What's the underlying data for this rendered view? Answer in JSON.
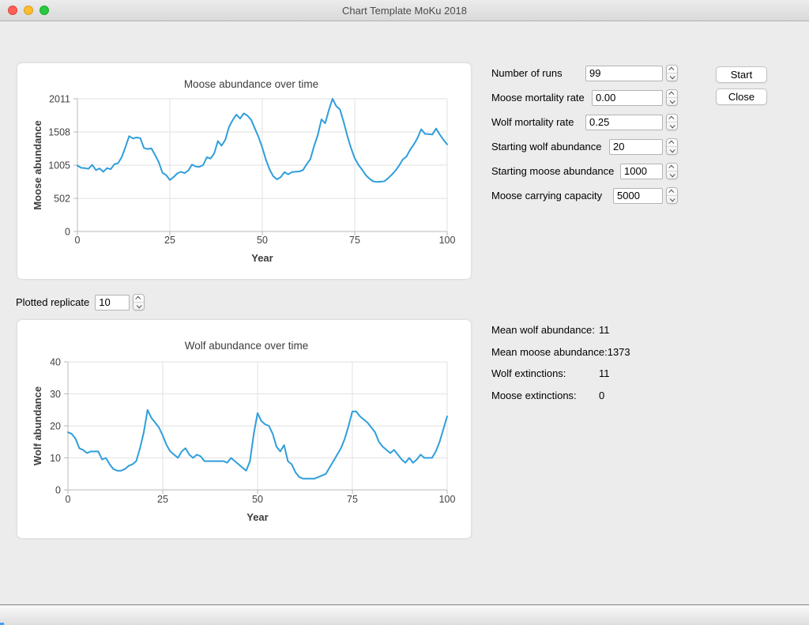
{
  "window": {
    "title": "Chart Template MoKu 2018"
  },
  "traffic_lights": {
    "close_color": "#ff5f57",
    "minimize_color": "#febc2e",
    "zoom_color": "#28c840"
  },
  "form": {
    "fields": [
      {
        "label": "Number of runs",
        "value": "99"
      },
      {
        "label": "Moose mortality rate",
        "value": "0.00"
      },
      {
        "label": "Wolf mortality rate",
        "value": "0.25"
      },
      {
        "label": "Starting wolf abundance",
        "value": "20"
      },
      {
        "label": "Starting moose abundance",
        "value": "1000"
      },
      {
        "label": "Moose carrying capacity",
        "value": "5000"
      }
    ]
  },
  "buttons": {
    "start": "Start",
    "close": "Close"
  },
  "replicate": {
    "label": "Plotted replicate",
    "value": "10"
  },
  "stats": [
    {
      "label": "Mean wolf abundance:",
      "value": "11"
    },
    {
      "label": "Mean moose abundance:",
      "value": "1373"
    },
    {
      "label": "Wolf extinctions:",
      "value": "11"
    },
    {
      "label": "Moose extinctions:",
      "value": "0"
    }
  ],
  "colors": {
    "line": "#2f9edb",
    "grid": "#e2e2e2",
    "axis": "#b9b9b9",
    "tick_text": "#424242",
    "title_text": "#3c3c3c"
  },
  "chart_data": [
    {
      "type": "line",
      "title": "Moose abundance over time",
      "xlabel": "Year",
      "ylabel": "Moose abundance",
      "x_ticks": [
        0,
        25,
        50,
        75,
        100
      ],
      "y_ticks": [
        0,
        502,
        1005,
        1508,
        2011
      ],
      "xlim": [
        0,
        100
      ],
      "ylim": [
        0,
        2011
      ],
      "grid": true,
      "legend": false,
      "x_step": 1,
      "values": [
        1000,
        965,
        960,
        950,
        1010,
        930,
        955,
        905,
        960,
        945,
        1020,
        1035,
        1130,
        1280,
        1445,
        1410,
        1425,
        1415,
        1265,
        1250,
        1260,
        1160,
        1050,
        890,
        855,
        780,
        825,
        880,
        905,
        885,
        925,
        1015,
        985,
        980,
        1005,
        1125,
        1105,
        1185,
        1370,
        1300,
        1390,
        1585,
        1690,
        1770,
        1710,
        1790,
        1755,
        1690,
        1560,
        1430,
        1270,
        1085,
        935,
        835,
        790,
        825,
        900,
        865,
        900,
        905,
        910,
        930,
        1020,
        1095,
        1290,
        1460,
        1700,
        1640,
        1835,
        2011,
        1900,
        1850,
        1660,
        1450,
        1265,
        1110,
        1010,
        935,
        855,
        800,
        760,
        750,
        755,
        760,
        805,
        860,
        920,
        1000,
        1090,
        1135,
        1240,
        1320,
        1420,
        1550,
        1480,
        1475,
        1470,
        1560,
        1470,
        1390,
        1320
      ]
    },
    {
      "type": "line",
      "title": "Wolf abundance over time",
      "xlabel": "Year",
      "ylabel": "Wolf abundance",
      "x_ticks": [
        0,
        25,
        50,
        75,
        100
      ],
      "y_ticks": [
        0,
        10,
        20,
        30,
        40
      ],
      "xlim": [
        0,
        100
      ],
      "ylim": [
        0,
        40
      ],
      "grid": true,
      "legend": false,
      "x_step": 1,
      "values": [
        18,
        17.5,
        16,
        13,
        12.5,
        11.5,
        12,
        12,
        12,
        9.5,
        10,
        8,
        6.5,
        6,
        6,
        6.5,
        7.5,
        8,
        9,
        13,
        18,
        25,
        22.5,
        21,
        19.5,
        17,
        14,
        12,
        11,
        10,
        12,
        13,
        11,
        10,
        11,
        10.5,
        9,
        9,
        9,
        9,
        9,
        9,
        8.5,
        10,
        9,
        8,
        7,
        6,
        9,
        17.5,
        24,
        21.5,
        20.5,
        20,
        17.5,
        13.5,
        12,
        14,
        9,
        8,
        5.5,
        4,
        3.5,
        3.5,
        3.5,
        3.5,
        4,
        4.5,
        5,
        7,
        9,
        11,
        13,
        16,
        20,
        24.5,
        24.5,
        23,
        22,
        21,
        19.5,
        18,
        15,
        13.5,
        12.5,
        11.5,
        12.5,
        11,
        9.5,
        8.5,
        10,
        8.5,
        9.5,
        11,
        10,
        10,
        10,
        12,
        15,
        19,
        23
      ]
    }
  ]
}
